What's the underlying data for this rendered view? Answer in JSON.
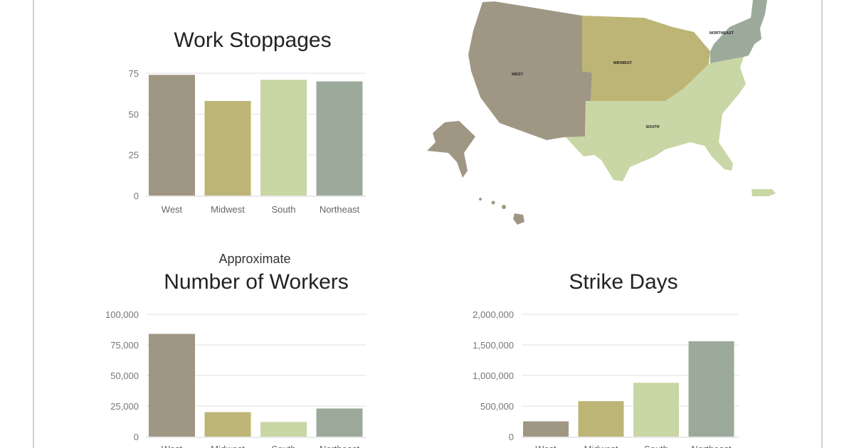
{
  "colors": {
    "West": "#a09684",
    "Midwest": "#bdb575",
    "South": "#c9d6a5",
    "Northeast": "#9caa9b"
  },
  "map": {
    "labels": {
      "west": "WEST",
      "midwest": "MIDWEST",
      "south": "SOUTH",
      "northeast": "NORTHEAST"
    }
  },
  "chart_data": [
    {
      "type": "bar",
      "title": "Work Stoppages",
      "subtitle": "",
      "categories": [
        "West",
        "Midwest",
        "South",
        "Northeast"
      ],
      "values": [
        74,
        58,
        71,
        70
      ],
      "ylim": [
        0,
        75
      ],
      "yticks": [
        "0",
        "25",
        "50",
        "75"
      ],
      "yticks_values": [
        0,
        25,
        50,
        75
      ],
      "grid": true
    },
    {
      "type": "bar",
      "subtitle": "Approximate",
      "title": "Number of Workers",
      "categories": [
        "West",
        "Midwest",
        "South",
        "Northeast"
      ],
      "values": [
        84000,
        20000,
        12000,
        23000
      ],
      "ylim": [
        0,
        100000
      ],
      "yticks": [
        "0",
        "25,000",
        "50,000",
        "75,000",
        "100,000"
      ],
      "yticks_values": [
        0,
        25000,
        50000,
        75000,
        100000
      ],
      "grid": true
    },
    {
      "type": "bar",
      "title": "Strike Days",
      "subtitle": "",
      "categories": [
        "West",
        "Midwest",
        "South",
        "Northeast"
      ],
      "values": [
        250000,
        580000,
        880000,
        1560000
      ],
      "ylim": [
        0,
        2000000
      ],
      "yticks": [
        "0",
        "500,000",
        "1,000,000",
        "1,500,000",
        "2,000,000"
      ],
      "yticks_values": [
        0,
        500000,
        1000000,
        1500000,
        2000000
      ],
      "grid": true
    }
  ]
}
